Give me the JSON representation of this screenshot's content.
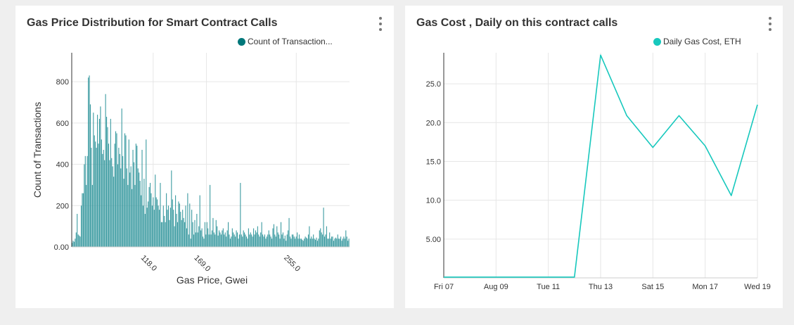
{
  "panels": {
    "left": {
      "title": "Gas Price Distribution for Smart Contract Calls",
      "legend_label": "Count of Transaction...",
      "color": "#3a9aa0",
      "legend_color": "#00777a"
    },
    "right": {
      "title": "Gas Cost , Daily on this contract calls",
      "legend_label": "Daily Gas Cost, ETH",
      "color": "#17c8bd"
    }
  },
  "chart_data": [
    {
      "type": "bar",
      "xlabel": "Gas Price, Gwei",
      "ylabel": "Count of Transactions",
      "ylim": [
        0,
        940
      ],
      "yticks": [
        0,
        200,
        400,
        600,
        800
      ],
      "ytick_labels": [
        "0.00",
        "200",
        "400",
        "600",
        "800"
      ],
      "xlim": [
        40,
        306
      ],
      "xticks": [
        118,
        169,
        255
      ],
      "xtick_labels": [
        "118.0",
        "169.0",
        "255.0"
      ],
      "grid": true,
      "legend": "top-right",
      "values": [
        20,
        30,
        25,
        40,
        70,
        160,
        60,
        55,
        50,
        200,
        260,
        260,
        400,
        440,
        300,
        440,
        820,
        830,
        690,
        480,
        300,
        650,
        540,
        510,
        480,
        640,
        500,
        620,
        680,
        520,
        450,
        470,
        420,
        740,
        630,
        580,
        500,
        420,
        620,
        430,
        390,
        340,
        500,
        560,
        550,
        400,
        480,
        450,
        380,
        670,
        440,
        330,
        550,
        540,
        380,
        300,
        520,
        360,
        390,
        280,
        470,
        410,
        300,
        500,
        490,
        380,
        360,
        320,
        250,
        470,
        200,
        330,
        160,
        520,
        190,
        220,
        290,
        310,
        260,
        200,
        240,
        180,
        350,
        240,
        230,
        200,
        180,
        310,
        120,
        120,
        200,
        150,
        120,
        260,
        180,
        200,
        130,
        190,
        370,
        230,
        180,
        100,
        250,
        160,
        120,
        220,
        210,
        170,
        130,
        180,
        140,
        120,
        200,
        90,
        260,
        60,
        210,
        40,
        180,
        120,
        60,
        130,
        70,
        160,
        70,
        100,
        250,
        80,
        90,
        50,
        40,
        120,
        60,
        120,
        90,
        60,
        300,
        60,
        80,
        140,
        70,
        60,
        130,
        100,
        55,
        80,
        70,
        60,
        80,
        90,
        60,
        70,
        50,
        80,
        120,
        60,
        40,
        50,
        90,
        70,
        60,
        50,
        80,
        70,
        40,
        60,
        310,
        60,
        50,
        80,
        70,
        60,
        50,
        40,
        90,
        60,
        70,
        60,
        50,
        90,
        60,
        80,
        70,
        100,
        60,
        50,
        70,
        120,
        60,
        50,
        60,
        40,
        50,
        60,
        80,
        60,
        50,
        40,
        90,
        110,
        60,
        50,
        100,
        70,
        60,
        40,
        120,
        60,
        70,
        40,
        55,
        30,
        60,
        80,
        140,
        50,
        40,
        60,
        60,
        50,
        40,
        50,
        70,
        40,
        60,
        40,
        40,
        35,
        30,
        40,
        50,
        45,
        40,
        60,
        100,
        40,
        50,
        40,
        60,
        40,
        35,
        45,
        30,
        40,
        80,
        90,
        70,
        60,
        190,
        50,
        60,
        100,
        40,
        40,
        70,
        40,
        50,
        50,
        30,
        40,
        45,
        40,
        60,
        40,
        40,
        50,
        30,
        40,
        50,
        40,
        80,
        50,
        30,
        40
      ]
    },
    {
      "type": "line",
      "ylabel": "",
      "xlabel": "",
      "x": [
        "Fri 07",
        "Sat 08",
        "Aug 09",
        "Mon 10",
        "Tue 11",
        "Wed 12",
        "Thu 13",
        "Fri 14",
        "Sat 15",
        "Sun 16",
        "Mon 17",
        "Tue 18",
        "Wed 19"
      ],
      "xtick_labels": [
        "Fri 07",
        "Aug 09",
        "Tue 11",
        "Thu 13",
        "Sat 15",
        "Mon 17",
        "Wed 19"
      ],
      "values": [
        0.1,
        0.1,
        0.1,
        0.1,
        0.1,
        0.1,
        28.7,
        20.9,
        16.8,
        20.9,
        17.0,
        10.6,
        22.3
      ],
      "ylim": [
        0,
        29
      ],
      "yticks": [
        5,
        10,
        15,
        20,
        25
      ],
      "ytick_labels": [
        "5.00",
        "10.0",
        "15.0",
        "20.0",
        "25.0"
      ],
      "grid": true,
      "legend": "top-right"
    }
  ]
}
